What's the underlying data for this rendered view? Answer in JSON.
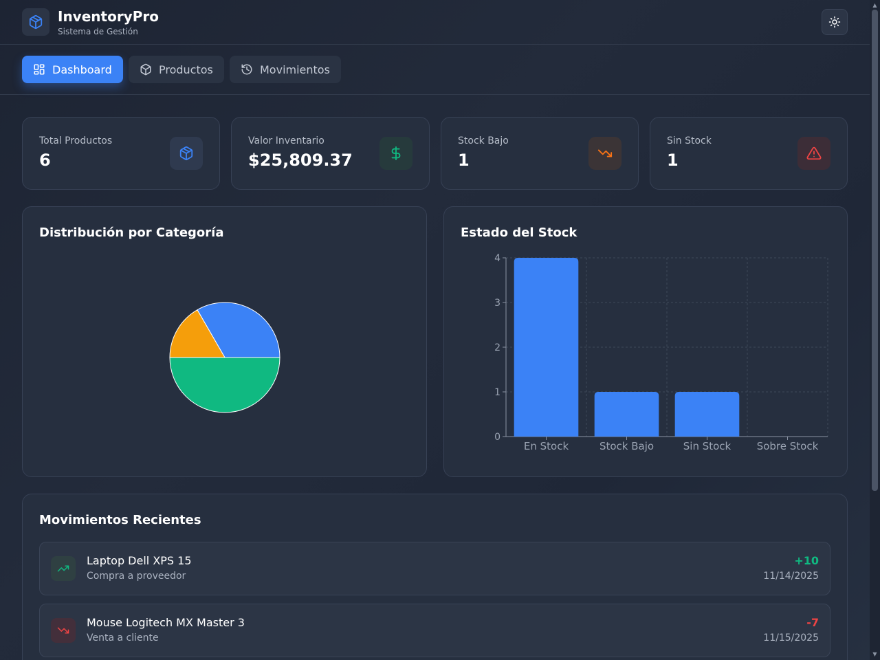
{
  "app": {
    "title": "InventoryPro",
    "subtitle": "Sistema de Gestión",
    "logo_icon": "box-icon",
    "theme_icon": "sun-icon"
  },
  "tabs": [
    {
      "label": "Dashboard",
      "icon": "grid-icon",
      "active": true
    },
    {
      "label": "Productos",
      "icon": "box-icon",
      "active": false
    },
    {
      "label": "Movimientos",
      "icon": "history-icon",
      "active": false
    }
  ],
  "stats": [
    {
      "label": "Total Productos",
      "value": "6",
      "icon": "box-icon",
      "color": "#3b82f6"
    },
    {
      "label": "Valor Inventario",
      "value": "$25,809.37",
      "icon": "dollar-icon",
      "color": "#10b981"
    },
    {
      "label": "Stock Bajo",
      "value": "1",
      "icon": "trending-down-icon",
      "color": "#f97316"
    },
    {
      "label": "Sin Stock",
      "value": "1",
      "icon": "alert-triangle-icon",
      "color": "#ef4444"
    }
  ],
  "category_panel": {
    "title": "Distribución por Categoría"
  },
  "stock_panel": {
    "title": "Estado del Stock"
  },
  "chart_data": [
    {
      "type": "pie",
      "title": "Distribución por Categoría",
      "slices": [
        {
          "value": 2,
          "color": "#3b82f6"
        },
        {
          "value": 3,
          "color": "#10b981"
        },
        {
          "value": 1,
          "color": "#f59e0b"
        }
      ]
    },
    {
      "type": "bar",
      "title": "Estado del Stock",
      "categories": [
        "En Stock",
        "Stock Bajo",
        "Sin Stock",
        "Sobre Stock"
      ],
      "values": [
        4,
        1,
        1,
        0
      ],
      "ylim": [
        0,
        4
      ],
      "yticks": [
        0,
        1,
        2,
        3,
        4
      ],
      "grid": true,
      "bar_color": "#3b82f6"
    }
  ],
  "movements": {
    "title": "Movimientos Recientes",
    "items": [
      {
        "name": "Laptop Dell XPS 15",
        "description": "Compra a proveedor",
        "quantity": "+10",
        "date": "11/14/2025",
        "type": "in",
        "icon": "trending-up-icon",
        "color": "#10b981"
      },
      {
        "name": "Mouse Logitech MX Master 3",
        "description": "Venta a cliente",
        "quantity": "-7",
        "date": "11/15/2025",
        "type": "out",
        "icon": "trending-down-icon",
        "color": "#ef4444"
      }
    ]
  }
}
